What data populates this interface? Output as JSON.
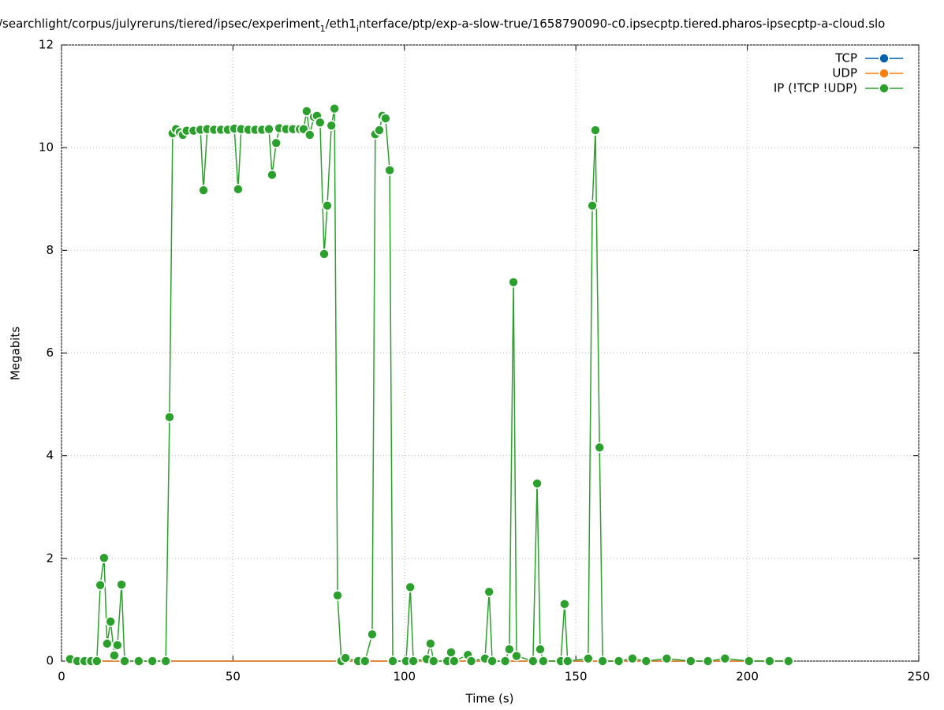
{
  "chart_data": {
    "type": "line",
    "title_parts": [
      "/searchlight/corpus/julyreruns/tiered/ipsec/experiment",
      "1",
      "/eth1",
      "i",
      "nterface/ptp/exp-a-slow-true/1658790090-c0.ipsecptp.tiered.pharos-ipsecptp-a-cloud.slo"
    ],
    "x_label": "Time (s)",
    "y_label": "Megabits",
    "x": [
      2.5,
      4.6,
      6.7,
      8.6,
      10.3,
      11.3,
      12.4,
      13.3,
      14.3,
      15.4,
      16.3,
      17.5,
      18.4,
      22.5,
      26.5,
      30.4,
      31.5,
      32.4,
      33.4,
      34.5,
      35.4,
      36.5,
      38.5,
      40.5,
      41.4,
      42.5,
      44.5,
      46.5,
      48.5,
      50.4,
      51.5,
      52.4,
      54.5,
      56.5,
      58.5,
      60.5,
      61.4,
      62.6,
      63.5,
      65.5,
      67.5,
      69.5,
      70.6,
      71.5,
      72.4,
      73.6,
      74.5,
      75.4,
      76.6,
      77.5,
      78.7,
      79.6,
      80.5,
      81.6,
      82.8,
      86.5,
      88.5,
      90.6,
      91.5,
      92.7,
      93.6,
      94.5,
      95.7,
      96.6,
      100.5,
      101.7,
      102.6,
      106.5,
      107.6,
      108.5,
      112.5,
      113.6,
      114.5,
      118.5,
      119.5,
      123.5,
      124.7,
      125.6,
      129.4,
      130.6,
      131.8,
      132.7,
      137.5,
      138.7,
      139.6,
      140.5,
      145.6,
      146.7,
      147.6,
      153.6,
      154.8,
      155.7,
      156.9,
      157.8,
      162.5,
      166.5,
      170.5,
      176.5,
      183.5,
      188.5,
      193.5,
      200.5,
      206.5,
      212
    ],
    "series": [
      {
        "name": "TCP",
        "color": "#0060ad",
        "markers": true,
        "values": [
          0,
          0,
          0,
          0,
          0,
          0,
          0,
          0,
          0,
          0,
          0,
          0,
          0,
          0,
          0,
          0,
          0,
          0,
          0,
          0,
          0,
          0,
          0,
          0,
          0,
          0,
          0,
          0,
          0,
          0,
          0,
          0,
          0,
          0,
          0,
          0,
          0,
          0,
          0,
          0,
          0,
          0,
          0,
          0,
          0,
          0,
          0,
          0,
          0,
          0,
          0,
          0,
          0,
          0,
          0,
          0,
          0,
          0,
          0,
          0,
          0,
          0,
          0,
          0,
          0,
          0,
          0,
          0,
          0,
          0,
          0,
          0,
          0,
          0,
          0,
          0,
          0,
          0,
          0,
          0,
          0,
          0,
          0,
          0,
          0,
          0,
          0,
          0,
          0,
          0,
          0,
          0,
          0,
          0,
          0,
          0,
          0,
          0,
          0,
          0,
          0,
          0,
          0,
          0
        ]
      },
      {
        "name": "UDP",
        "color": "#ff7f0e",
        "markers": true,
        "values": [
          0,
          0,
          0,
          0,
          0,
          0,
          0,
          0,
          0,
          0,
          0,
          0,
          0,
          0,
          0,
          0,
          0,
          0,
          0,
          0,
          0,
          0,
          0,
          0,
          0,
          0,
          0,
          0,
          0,
          0,
          0,
          0,
          0,
          0,
          0,
          0,
          0,
          0,
          0,
          0,
          0,
          0,
          0,
          0,
          0,
          0,
          0,
          0,
          0,
          0,
          0,
          0,
          0,
          0,
          0,
          0,
          0,
          0,
          0,
          0,
          0,
          0,
          0,
          0,
          0,
          0,
          0,
          0,
          0,
          0,
          0,
          0,
          0,
          0,
          0,
          0,
          0,
          0,
          0,
          0,
          0,
          0,
          0,
          0,
          0,
          0,
          0,
          0,
          0,
          0,
          0,
          0,
          0,
          0,
          0,
          0,
          0,
          0,
          0,
          0,
          0,
          0,
          0,
          0
        ]
      },
      {
        "name": "IP (!TCP  !UDP)",
        "color": "#2ca02c",
        "markers": true,
        "values": [
          0.04,
          0,
          0,
          0,
          0,
          1.48,
          2.01,
          0.34,
          0.77,
          0.11,
          0.31,
          1.49,
          0,
          0,
          0,
          0,
          4.75,
          10.28,
          10.36,
          10.3,
          10.25,
          10.33,
          10.33,
          10.35,
          9.17,
          10.36,
          10.35,
          10.35,
          10.35,
          10.37,
          9.19,
          10.36,
          10.35,
          10.35,
          10.35,
          10.36,
          9.47,
          10.09,
          10.38,
          10.36,
          10.36,
          10.36,
          10.36,
          10.71,
          10.25,
          10.6,
          10.62,
          10.49,
          7.93,
          8.87,
          10.43,
          10.76,
          1.28,
          0,
          0.06,
          0,
          0,
          0.52,
          10.26,
          10.34,
          10.62,
          10.57,
          9.56,
          0,
          0,
          1.44,
          0,
          0.04,
          0.34,
          0,
          0,
          0.17,
          0,
          0.12,
          0,
          0.05,
          1.35,
          0,
          0,
          0.23,
          7.38,
          0.1,
          0,
          3.46,
          0.23,
          0,
          0,
          1.11,
          0,
          0.05,
          8.87,
          10.34,
          4.16,
          0,
          0,
          0.05,
          0,
          0.05,
          0,
          0,
          0.05,
          0,
          0,
          0
        ]
      }
    ],
    "xlim": [
      0,
      250
    ],
    "xticks": [
      0,
      50,
      100,
      150,
      200,
      250
    ],
    "ylim": [
      0,
      12
    ],
    "yticks": [
      0,
      2,
      4,
      6,
      8,
      10,
      12
    ],
    "grid": true,
    "legend": "top-right"
  }
}
